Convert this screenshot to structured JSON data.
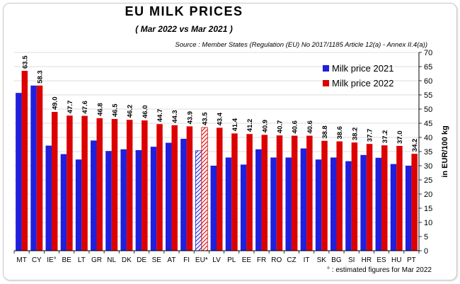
{
  "chart_data": {
    "type": "bar",
    "title": "EU MILK PRICES",
    "subtitle": "( Mar 2022 vs Mar 2021 )",
    "source": "Source : Member States (Regulation (EU) No 2017/1185 Article 12(a) - Annex II.4(a))",
    "ylabel": "in EUR/100 kg",
    "xlabel": "",
    "ylim": [
      0,
      70
    ],
    "yticks": [
      0,
      5,
      10,
      15,
      20,
      25,
      30,
      35,
      40,
      45,
      50,
      55,
      60,
      65,
      70
    ],
    "y_axis_side": "right",
    "grid": true,
    "legend_position": "top-right",
    "categories": [
      "MT",
      "CY",
      "IE°",
      "BE",
      "LT",
      "GR",
      "NL",
      "DK",
      "DE",
      "SE",
      "AT",
      "FI",
      "EU*",
      "LV",
      "PL",
      "EE",
      "FR",
      "RO",
      "CZ",
      "IT",
      "SK",
      "BG",
      "SI",
      "HR",
      "ES",
      "HU",
      "PT"
    ],
    "series": [
      {
        "name": "Milk price 2021",
        "color": "#1f1fdd",
        "values": [
          55.7,
          58.3,
          37.1,
          34.1,
          32.2,
          38.9,
          35.2,
          35.8,
          35.5,
          36.7,
          38.1,
          39.5,
          35.3,
          30.0,
          32.9,
          30.4,
          35.8,
          32.9,
          32.9,
          36.1,
          32.2,
          32.9,
          31.6,
          33.8,
          32.8,
          30.6,
          30.0
        ]
      },
      {
        "name": "Milk price 2022",
        "color": "#dd0000",
        "values": [
          63.5,
          58.3,
          49.0,
          47.7,
          47.6,
          46.8,
          46.5,
          46.2,
          46.0,
          44.7,
          44.3,
          43.9,
          43.5,
          43.4,
          41.4,
          41.2,
          40.9,
          40.7,
          40.6,
          40.6,
          38.8,
          38.6,
          38.2,
          37.7,
          37.2,
          37.0,
          34.2
        ],
        "labels": [
          "63.5",
          "58.3",
          "49.0",
          "47.7",
          "47.6",
          "46.8",
          "46.5",
          "46.2",
          "46.0",
          "44.7",
          "44.3",
          "43.9",
          "43.5",
          "43.4",
          "41.4",
          "41.2",
          "40.9",
          "40.7",
          "40.6",
          "40.6",
          "38.8",
          "38.6",
          "38.2",
          "37.7",
          "37.2",
          "37.0",
          "34.2"
        ]
      }
    ],
    "highlight_category": "EU*",
    "footnote": "° : estimated figures for Mar 2022"
  }
}
